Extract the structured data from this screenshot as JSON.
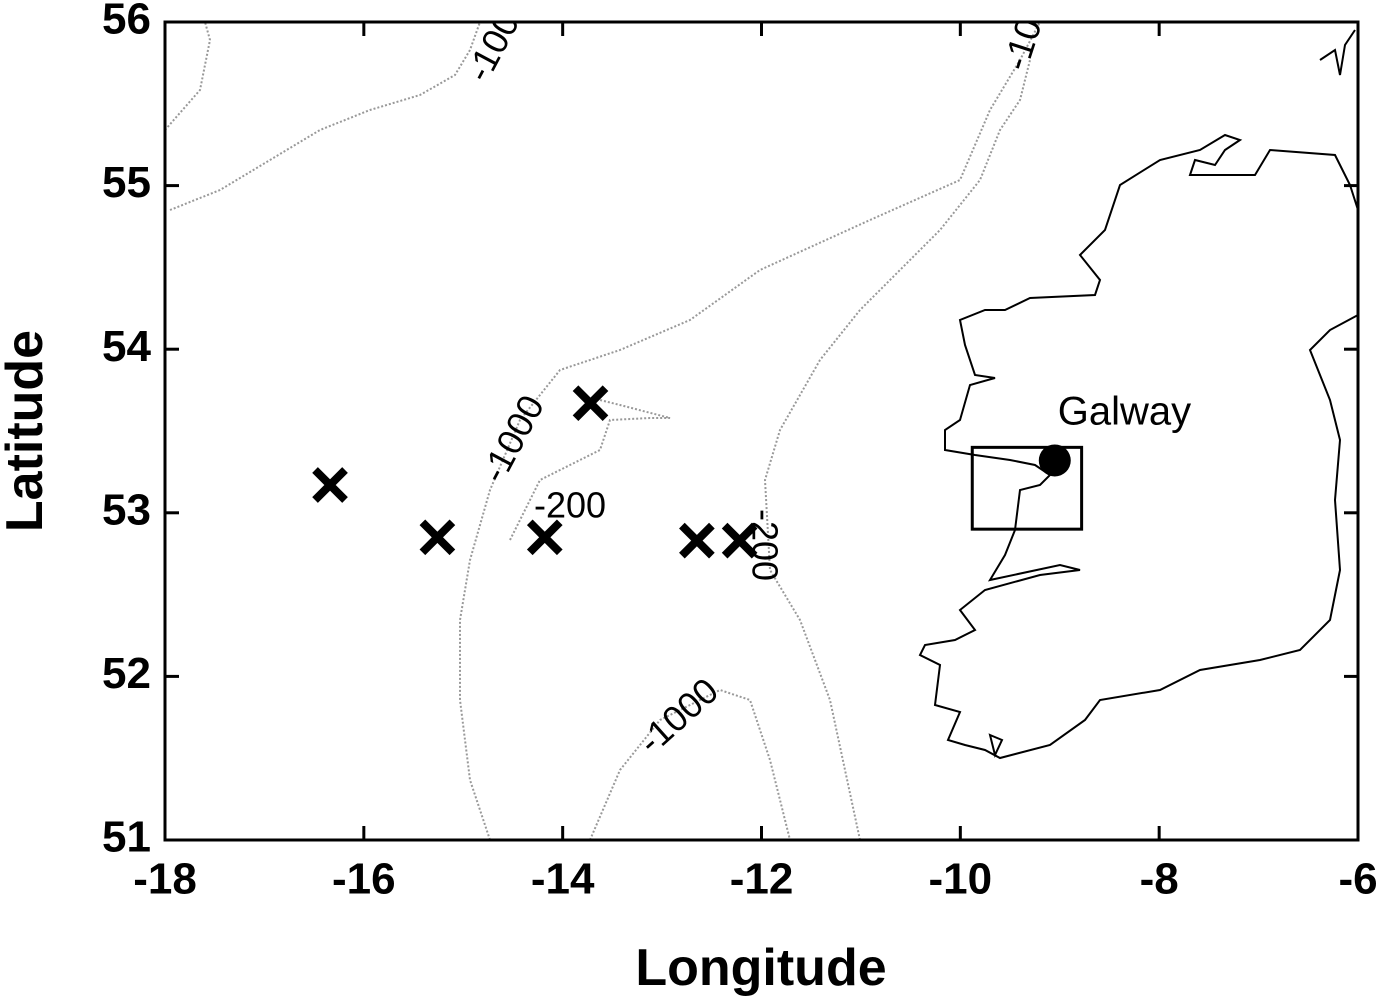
{
  "chart_data": {
    "type": "scatter",
    "xlabel": "Longitude",
    "ylabel": "Latitude",
    "xlim": [
      -18,
      -6
    ],
    "ylim": [
      51,
      56
    ],
    "xticks": [
      -18,
      -16,
      -14,
      -12,
      -10,
      -8,
      -6
    ],
    "yticks": [
      51,
      52,
      53,
      54,
      55,
      56
    ],
    "grid": false,
    "series": [
      {
        "marker": "x",
        "color": "#000000",
        "x": [
          -16.34,
          -15.26,
          -14.18,
          -13.72,
          -12.65,
          -12.22
        ],
        "values": [
          53.17,
          52.85,
          52.85,
          53.67,
          52.83,
          52.83
        ]
      }
    ],
    "annotations": [
      {
        "text": "Galway",
        "x": -9.05,
        "y": 53.32
      }
    ],
    "box": {
      "xlim": [
        -9.88,
        -8.78
      ],
      "ylim": [
        52.9,
        53.4
      ]
    },
    "contour_labels": [
      "-1000",
      "-200",
      "-1000",
      "-200",
      "-100",
      "-10"
    ]
  }
}
